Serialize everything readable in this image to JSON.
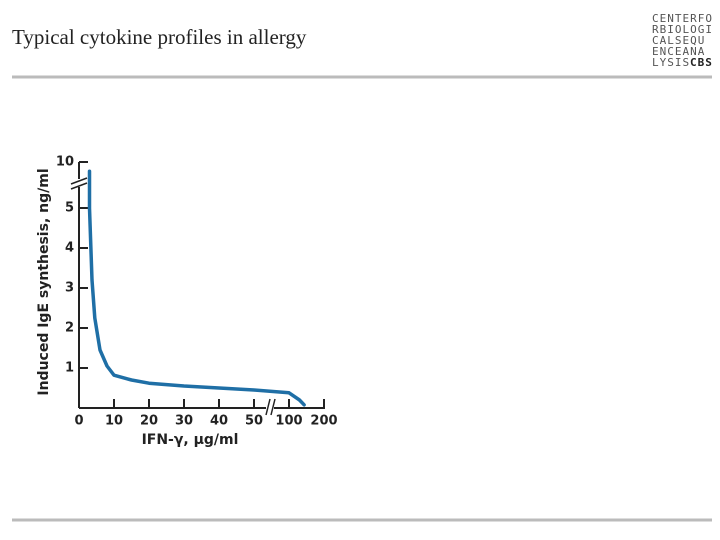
{
  "logo": {
    "lines": [
      "CENTERFO",
      "RBIOLOGI",
      "CALSEQU",
      "ENCEANA",
      "LYSIS"
    ],
    "mark": "CBS"
  },
  "chart_data": {
    "type": "line",
    "title": "Typical cytokine profiles in allergy",
    "x_label": "IFN-γ, μg/ml",
    "y_label": "Induced IgE synthesis, ng/ml",
    "x": [
      3,
      3,
      3.7,
      4.5,
      6,
      8,
      10,
      15,
      20,
      30,
      40,
      50,
      100,
      130,
      143
    ],
    "values": [
      9,
      5,
      3.2,
      2.25,
      1.45,
      1.05,
      0.82,
      0.7,
      0.62,
      0.55,
      0.5,
      0.45,
      0.38,
      0.2,
      0.08
    ],
    "color": "#1f6fa6",
    "xlim": [
      0,
      200
    ],
    "xticks": [
      0,
      10,
      20,
      30,
      40,
      50,
      100,
      200
    ],
    "ylim": [
      0,
      10
    ],
    "yticks": [
      1,
      2,
      3,
      4,
      5,
      10
    ]
  }
}
